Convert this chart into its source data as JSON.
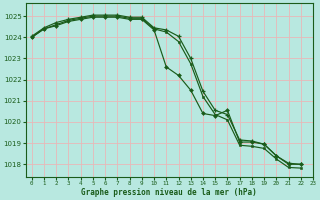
{
  "title": "Graphe pression niveau de la mer (hPa)",
  "bg_color": "#b8e8e0",
  "grid_color": "#e8b8b8",
  "line_color": "#1a5c1a",
  "xlim": [
    -0.5,
    23
  ],
  "ylim": [
    1017.4,
    1025.6
  ],
  "yticks": [
    1018,
    1019,
    1020,
    1021,
    1022,
    1023,
    1024,
    1025
  ],
  "xticks": [
    0,
    1,
    2,
    3,
    4,
    5,
    6,
    7,
    8,
    9,
    10,
    11,
    12,
    13,
    14,
    15,
    16,
    17,
    18,
    19,
    20,
    21,
    22,
    23
  ],
  "s1_steep": [
    1024.0,
    1024.4,
    1024.55,
    1024.75,
    1024.85,
    1024.95,
    1024.95,
    1024.95,
    1024.85,
    1024.85,
    1024.35,
    1022.6,
    1022.2,
    1021.5,
    1020.4,
    1020.3,
    1020.55,
    1019.05,
    1019.05,
    1018.95,
    1018.4,
    1018.0,
    1018.0
  ],
  "s2_top": [
    1024.05,
    1024.45,
    1024.7,
    1024.85,
    1024.95,
    1025.05,
    1025.05,
    1025.05,
    1024.95,
    1024.95,
    1024.45,
    1024.35,
    1024.05,
    1023.0,
    1021.45,
    1020.55,
    1020.35,
    1019.15,
    1019.1,
    1018.95,
    1018.4,
    1018.05,
    1018.0
  ],
  "s3_mid": [
    1024.0,
    1024.4,
    1024.6,
    1024.8,
    1024.9,
    1025.0,
    1025.0,
    1025.0,
    1024.9,
    1024.9,
    1024.4,
    1024.25,
    1023.8,
    1022.75,
    1021.2,
    1020.35,
    1020.1,
    1018.9,
    1018.85,
    1018.75,
    1018.25,
    1017.85,
    1017.82
  ]
}
